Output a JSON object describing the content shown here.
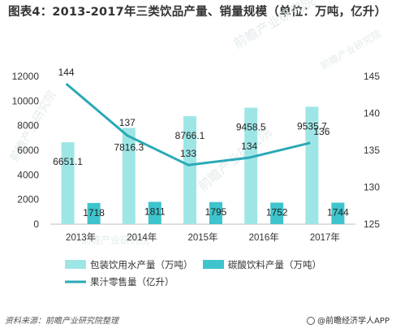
{
  "title": "图表4：2013-2017年三类饮品产量、销量规模（单位：万吨，亿升）",
  "source": "资料来源：前瞻产业研究院整理",
  "brand": "@前瞻经济学人APP",
  "watermark": "前瞻产业研究院",
  "colors": {
    "bar1": "#9ee6e6",
    "bar2": "#3ec4cc",
    "line": "#2aa9b5"
  },
  "chart_data": {
    "type": "bar",
    "categories": [
      "2013年",
      "2014年",
      "2015年",
      "2016年",
      "2017年"
    ],
    "series": [
      {
        "name": "包装饮用水产量（万吨）",
        "type": "bar",
        "axis": "left",
        "values": [
          6651.1,
          7816.3,
          8766.1,
          9458.5,
          9535.7
        ]
      },
      {
        "name": "碳酸饮料产量（万吨）",
        "type": "bar",
        "axis": "left",
        "values": [
          1718,
          1811,
          1795,
          1752,
          1744
        ]
      },
      {
        "name": "果汁零售量（亿升）",
        "type": "line",
        "axis": "right",
        "values": [
          144,
          137,
          133,
          134,
          136
        ]
      }
    ],
    "left_axis": {
      "ylim": [
        0,
        12000
      ],
      "ticks": [
        0,
        2000,
        4000,
        6000,
        8000,
        10000,
        12000
      ]
    },
    "right_axis": {
      "ylim": [
        125,
        145
      ],
      "ticks": [
        125,
        130,
        135,
        140,
        145
      ]
    },
    "legend_position": "bottom",
    "grid": false
  }
}
